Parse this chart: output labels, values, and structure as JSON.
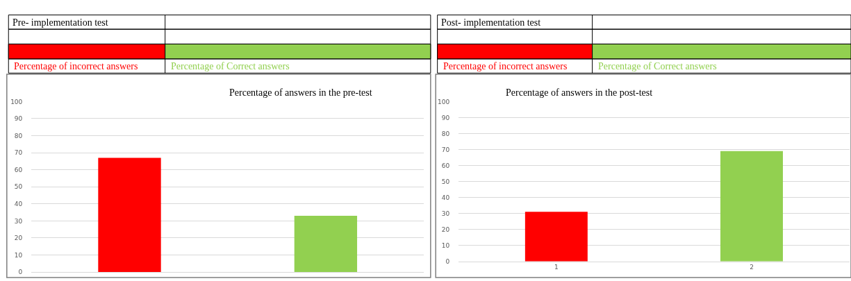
{
  "chart_data": [
    {
      "type": "bar",
      "title": "Percentage of answers in the pre-test",
      "legend_title": "Pre- implementation test",
      "categories": [
        null,
        null
      ],
      "series": [
        {
          "name": "Percentage of incorrect answers",
          "color": "#ff0000",
          "values": [
            67,
            null
          ]
        },
        {
          "name": "Percentage of Correct answers",
          "color": "#92d050",
          "values": [
            null,
            33
          ]
        }
      ],
      "ylim": [
        0,
        100
      ],
      "yticks": [
        0,
        10,
        20,
        30,
        40,
        50,
        60,
        70,
        80,
        90,
        100
      ],
      "grid": "y",
      "legend": "top"
    },
    {
      "type": "bar",
      "title": "Percentage of answers in the post-test",
      "legend_title": "Post- implementation test",
      "categories": [
        "1",
        "2"
      ],
      "series": [
        {
          "name": "Percentage of incorrect answers",
          "color": "#ff0000",
          "values": [
            31,
            null
          ]
        },
        {
          "name": "Percentage of Correct answers",
          "color": "#92d050",
          "values": [
            null,
            69
          ]
        }
      ],
      "ylim": [
        0,
        100
      ],
      "yticks": [
        0,
        10,
        20,
        30,
        40,
        50,
        60,
        70,
        80,
        90,
        100
      ],
      "grid": "y",
      "legend": "top"
    }
  ]
}
